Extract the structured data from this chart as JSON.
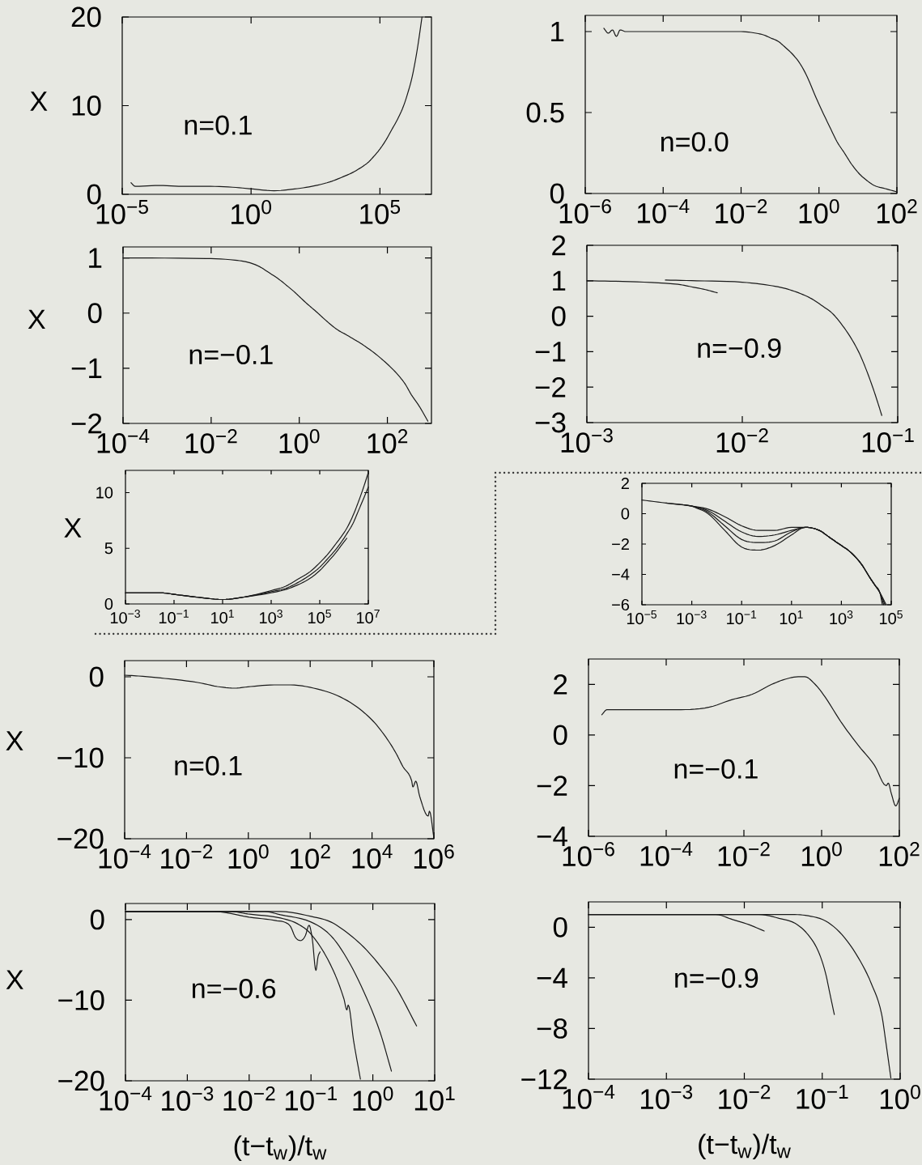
{
  "chart_data": [
    {
      "type": "line",
      "ylabel": "X",
      "annotations": [
        "n=0.1"
      ],
      "log": "x",
      "xlim": [
        1e-05,
        10000000.0
      ],
      "ylim": [
        0,
        20
      ],
      "xticks": [
        {
          "value": 1e-05,
          "label": "10$^{−5}$"
        },
        {
          "value": 1,
          "label": "10$^{0}$"
        },
        {
          "value": 100000.0,
          "label": "10$^{5}$"
        }
      ],
      "yticks": [
        0,
        10,
        20
      ],
      "series": [
        {
          "color": "#1a1a1a",
          "x": [
            2.2e-05,
            3.2e-05,
            0.00027,
            0.0022,
            0.018,
            0.19,
            1.15,
            7.8,
            49,
            230,
            1150,
            3200,
            9300,
            18000.0,
            35000.0,
            59000.0,
            100000.0,
            170000.0,
            290000.0,
            490000.0,
            810000.0,
            1200000.0,
            1800000.0,
            2800000.0,
            4300000.0
          ],
          "values": [
            1.3,
            0.9,
            1.0,
            0.9,
            0.9,
            0.8,
            0.6,
            0.4,
            0.6,
            0.9,
            1.4,
            1.9,
            2.5,
            3.0,
            3.6,
            4.3,
            5.1,
            6.1,
            7.3,
            8.5,
            9.9,
            11.4,
            13.3,
            16.3,
            20
          ]
        }
      ]
    },
    {
      "type": "line",
      "annotations": [
        "n=0.0"
      ],
      "log": "x",
      "xlim": [
        1e-06,
        100.0
      ],
      "ylim": [
        0,
        1.1
      ],
      "xticks": [
        {
          "value": 1e-06,
          "label": "10$^{−6}$"
        },
        {
          "value": 0.0001,
          "label": "10$^{−4}$"
        },
        {
          "value": 0.01,
          "label": "10$^{−2}$"
        },
        {
          "value": 1,
          "label": "10$^{0}$"
        },
        {
          "value": 100.0,
          "label": "10$^{2}$"
        }
      ],
      "yticks": [
        0,
        0.5,
        1
      ],
      "series": [
        {
          "color": "#1a1a1a",
          "x": [
            3e-06,
            3.9e-06,
            5e-06,
            6.3e-06,
            7.9e-06,
            1.1e-05,
            0.00013,
            0.01,
            0.024,
            0.037,
            0.058,
            0.089,
            0.14,
            0.21,
            0.33,
            0.5,
            0.78,
            1.2,
            1.9,
            2.9,
            4.5,
            6.9,
            11,
            17,
            26,
            50,
            100
          ],
          "values": [
            1.02,
            0.99,
            1.01,
            0.97,
            1.01,
            1.0,
            1.0,
            1.0,
            0.99,
            0.98,
            0.96,
            0.94,
            0.9,
            0.86,
            0.8,
            0.72,
            0.61,
            0.51,
            0.41,
            0.32,
            0.25,
            0.18,
            0.12,
            0.08,
            0.05,
            0.03,
            0.01
          ]
        }
      ]
    },
    {
      "type": "line",
      "ylabel": "X",
      "annotations": [
        "n=−0.1"
      ],
      "log": "x",
      "xlim": [
        0.0001,
        1000.0
      ],
      "ylim": [
        -2,
        1.2
      ],
      "xticks": [
        {
          "value": 0.0001,
          "label": "10$^{−4}$"
        },
        {
          "value": 0.01,
          "label": "10$^{−2}$"
        },
        {
          "value": 1,
          "label": "10$^{0}$"
        },
        {
          "value": 100.0,
          "label": "10$^{2}$"
        }
      ],
      "yticks": [
        {
          "value": -2,
          "label": "−2"
        },
        {
          "value": -1,
          "label": "−1"
        },
        0,
        1
      ],
      "series": [
        {
          "color": "#1a1a1a",
          "x": [
            0.0001,
            0.0076,
            0.035,
            0.07,
            0.12,
            0.2,
            0.35,
            0.52,
            0.76,
            1.1,
            1.6,
            2.4,
            3.5,
            5.2,
            7.6,
            11.5,
            17,
            25,
            35,
            52,
            76,
            115,
            170,
            250,
            350,
            540,
            830
          ],
          "values": [
            1.0,
            0.99,
            0.96,
            0.92,
            0.85,
            0.74,
            0.61,
            0.5,
            0.39,
            0.27,
            0.15,
            0.03,
            -0.09,
            -0.21,
            -0.31,
            -0.39,
            -0.47,
            -0.55,
            -0.63,
            -0.73,
            -0.84,
            -0.97,
            -1.11,
            -1.28,
            -1.48,
            -1.7,
            -1.96
          ]
        }
      ]
    },
    {
      "type": "line",
      "annotations": [
        "n=−0.9"
      ],
      "log": "x",
      "xlim": [
        0.001,
        0.1
      ],
      "ylim": [
        -3,
        2
      ],
      "xticks": [
        {
          "value": 0.001,
          "label": "10$^{−3}$"
        },
        {
          "value": 0.01,
          "label": "10$^{−2}$"
        },
        {
          "value": 0.1,
          "label": "10$^{−1}$"
        }
      ],
      "yticks": [
        {
          "value": -3,
          "label": "−3"
        },
        {
          "value": -2,
          "label": "−2"
        },
        {
          "value": -1,
          "label": "−1"
        },
        0,
        1,
        2
      ],
      "series": [
        {
          "color": "#1a1a1a",
          "x": [
            0.001,
            0.0017,
            0.0032,
            0.004,
            0.0047,
            0.0058,
            0.0069
          ],
          "values": [
            1.0,
            0.98,
            0.93,
            0.89,
            0.83,
            0.75,
            0.66
          ]
        },
        {
          "color": "#1a1a1a",
          "x": [
            0.0032,
            0.0051,
            0.01,
            0.015,
            0.019,
            0.023,
            0.028,
            0.033,
            0.038,
            0.042,
            0.049,
            0.056,
            0.062,
            0.069,
            0.074,
            0.079
          ],
          "values": [
            1.02,
            1.0,
            0.96,
            0.87,
            0.78,
            0.66,
            0.49,
            0.28,
            0.08,
            -0.14,
            -0.55,
            -1.0,
            -1.45,
            -2.0,
            -2.4,
            -2.8
          ]
        }
      ]
    },
    {
      "type": "line",
      "ylabel": "X",
      "log": "x",
      "xlim": [
        0.001,
        10000000.0
      ],
      "ylim": [
        0,
        12
      ],
      "xticks": [
        {
          "value": 0.001,
          "label": "10$^{−3}$"
        },
        {
          "value": 0.1,
          "label": "10$^{−1}$"
        },
        {
          "value": 10,
          "label": "10$^{1}$"
        },
        {
          "value": 1000.0,
          "label": "10$^{3}$"
        },
        {
          "value": 100000.0,
          "label": "10$^{5}$"
        },
        {
          "value": 10000000.0,
          "label": "10$^{7}$"
        }
      ],
      "yticks": [
        0,
        5,
        10
      ],
      "series": [
        {
          "color": "#1a1a1a",
          "x": [
            0.001,
            0.026,
            0.16,
            0.98,
            10,
            68,
            1000,
            4000,
            12000.0,
            40000.0,
            100000.0,
            220000.0,
            460000.0,
            800000.0,
            1300000.0,
            2300000.0,
            3800000.0,
            6200000.0,
            10000000.0
          ],
          "values": [
            1.0,
            1.0,
            0.8,
            0.6,
            0.4,
            0.6,
            1.2,
            1.6,
            2.2,
            2.9,
            3.7,
            4.5,
            5.4,
            6.1,
            6.8,
            7.9,
            9.1,
            10.4,
            11.8
          ]
        },
        {
          "color": "#1a1a1a",
          "x": [
            0.001,
            0.026,
            0.16,
            0.98,
            10,
            68,
            1000,
            4000,
            12000.0,
            40000.0,
            100000.0,
            220000.0,
            460000.0,
            800000.0,
            1300000.0,
            2300000.0,
            3800000.0,
            6200000.0,
            10000000.0
          ],
          "values": [
            1.0,
            1.0,
            0.8,
            0.6,
            0.4,
            0.6,
            1.1,
            1.4,
            1.9,
            2.6,
            3.3,
            4.1,
            4.9,
            5.6,
            6.3,
            7.2,
            8.3,
            9.4,
            10.5
          ]
        },
        {
          "color": "#1a1a1a",
          "x": [
            0.001,
            0.026,
            0.16,
            0.98,
            10,
            68,
            1000,
            4000,
            12000.0,
            40000.0,
            100000.0,
            220000.0,
            460000.0,
            800000.0,
            1300000.0
          ],
          "values": [
            1.0,
            1.0,
            0.8,
            0.6,
            0.4,
            0.6,
            1.0,
            1.3,
            1.7,
            2.3,
            3.0,
            3.8,
            4.6,
            5.3,
            5.9
          ]
        }
      ]
    },
    {
      "type": "line",
      "log": "x",
      "xlim": [
        1e-05,
        100000.0
      ],
      "ylim": [
        -6,
        2
      ],
      "xticks": [
        {
          "value": 1e-05,
          "label": "10$^{−5}$"
        },
        {
          "value": 0.001,
          "label": "10$^{−3}$"
        },
        {
          "value": 0.1,
          "label": "10$^{−1}$"
        },
        {
          "value": 10,
          "label": "10$^{1}$"
        },
        {
          "value": 1000.0,
          "label": "10$^{3}$"
        },
        {
          "value": 100000.0,
          "label": "10$^{5}$"
        }
      ],
      "yticks": [
        {
          "value": -6,
          "label": "−6"
        },
        {
          "value": -4,
          "label": "−4"
        },
        {
          "value": -2,
          "label": "−2"
        },
        0,
        2
      ],
      "series": [
        {
          "color": "#1a1a1a",
          "x": [
            1e-05,
            9.3e-05,
            0.001,
            0.0045,
            0.021,
            0.1,
            0.46,
            2.1,
            10,
            36,
            130,
            360,
            1000,
            2200,
            6200,
            15000.0,
            22000.0,
            35000.0,
            44000.0
          ],
          "values": [
            0.9,
            0.7,
            0.5,
            0.3,
            -0.2,
            -0.8,
            -1.1,
            -1.1,
            -0.9,
            -0.9,
            -1.1,
            -1.6,
            -2.1,
            -2.5,
            -3.3,
            -4.3,
            -4.7,
            -5.2,
            -6.0
          ]
        },
        {
          "color": "#1a1a1a",
          "x": [
            9.3e-05,
            0.001,
            0.0045,
            0.021,
            0.1,
            0.46,
            2.1,
            10,
            36,
            130,
            360,
            1000,
            2200,
            6200,
            15000.0,
            22000.0,
            35000.0,
            50000.0
          ],
          "values": [
            0.7,
            0.5,
            0.2,
            -0.5,
            -1.2,
            -1.5,
            -1.4,
            -1.1,
            -0.9,
            -1.1,
            -1.6,
            -2.1,
            -2.5,
            -3.3,
            -4.3,
            -4.7,
            -5.2,
            -6.0
          ]
        },
        {
          "color": "#1a1a1a",
          "x": [
            0.0004,
            0.001,
            0.0045,
            0.021,
            0.1,
            0.46,
            2.1,
            10,
            36,
            130,
            360,
            1000,
            2200,
            6200,
            15000.0,
            22000.0,
            35000.0,
            56000.0
          ],
          "values": [
            0.6,
            0.5,
            0.1,
            -0.8,
            -1.7,
            -1.9,
            -1.8,
            -1.2,
            -0.9,
            -1.1,
            -1.6,
            -2.1,
            -2.5,
            -3.3,
            -4.3,
            -4.7,
            -5.2,
            -6.0
          ]
        },
        {
          "color": "#1a1a1a",
          "x": [
            0.001,
            0.0045,
            0.021,
            0.1,
            0.46,
            2.1,
            10,
            36,
            130,
            360,
            1000,
            2200,
            6200,
            15000.0,
            22000.0,
            35000.0,
            63000.0
          ],
          "values": [
            0.5,
            0.0,
            -1.1,
            -2.2,
            -2.4,
            -2.1,
            -1.4,
            -0.9,
            -1.1,
            -1.6,
            -2.1,
            -2.5,
            -3.3,
            -4.3,
            -4.7,
            -5.2,
            -6.0
          ]
        }
      ]
    },
    {
      "type": "line",
      "ylabel": "X",
      "annotations": [
        "n=0.1"
      ],
      "log": "x",
      "xlim": [
        0.0001,
        1000000.0
      ],
      "ylim": [
        -20,
        2
      ],
      "xticks": [
        {
          "value": 0.0001,
          "label": "10$^{−4}$"
        },
        {
          "value": 0.01,
          "label": "10$^{−2}$"
        },
        {
          "value": 1,
          "label": "10$^{0}$"
        },
        {
          "value": 100.0,
          "label": "10$^{2}$"
        },
        {
          "value": 10000.0,
          "label": "10$^{4}$"
        },
        {
          "value": 1000000.0,
          "label": "10$^{6}$"
        }
      ],
      "yticks": [
        {
          "value": -20,
          "label": "−20"
        },
        {
          "value": -10,
          "label": "−10"
        },
        0
      ],
      "series": [
        {
          "color": "#1a1a1a",
          "x": [
            0.0001,
            0.00028,
            0.002,
            0.023,
            0.1,
            0.35,
            1.2,
            6.8,
            23,
            130,
            740,
            3200,
            11000.0,
            21000.0,
            38000.0,
            63000.0,
            100000.0,
            190000.0,
            210000.0,
            260000.0,
            350000.0,
            650000.0,
            720000.0,
            1000000.0
          ],
          "values": [
            0.2,
            0.1,
            -0.2,
            -0.7,
            -1.2,
            -1.4,
            -1.2,
            -1.0,
            -1.0,
            -1.4,
            -2.3,
            -3.7,
            -5.5,
            -6.8,
            -8.2,
            -9.6,
            -11.1,
            -12.8,
            -13.6,
            -12.9,
            -14.8,
            -17.2,
            -16.6,
            -19.9
          ]
        }
      ]
    },
    {
      "type": "line",
      "annotations": [
        "n=−0.1"
      ],
      "log": "x",
      "xlim": [
        1e-06,
        100.0
      ],
      "ylim": [
        -4,
        3
      ],
      "xticks": [
        {
          "value": 1e-06,
          "label": "10$^{−6}$"
        },
        {
          "value": 0.0001,
          "label": "10$^{−4}$"
        },
        {
          "value": 0.01,
          "label": "10$^{−2}$"
        },
        {
          "value": 1,
          "label": "10$^{0}$"
        },
        {
          "value": 100.0,
          "label": "10$^{2}$"
        }
      ],
      "yticks": [
        {
          "value": -4,
          "label": "−4"
        },
        {
          "value": -2,
          "label": "−2"
        },
        0,
        2
      ],
      "series": [
        {
          "color": "#1a1a1a",
          "x": [
            2.2e-06,
            3e-06,
            2.5e-05,
            0.00024,
            0.0013,
            0.005,
            0.016,
            0.052,
            0.115,
            0.25,
            0.37,
            0.68,
            1.23,
            3.2,
            8.7,
            23,
            46,
            52,
            62,
            81,
            100
          ],
          "values": [
            0.8,
            1.0,
            1.0,
            1.0,
            1.1,
            1.4,
            1.6,
            2.0,
            2.2,
            2.3,
            2.3,
            2.0,
            1.5,
            0.5,
            -0.4,
            -1.2,
            -2.0,
            -1.9,
            -2.3,
            -2.8,
            -2.5
          ]
        }
      ]
    },
    {
      "type": "line",
      "ylabel": "X",
      "xlabel": "(t−t$_{w}$)/t$_{w}$",
      "annotations": [
        "n=−0.6"
      ],
      "log": "x",
      "xlim": [
        0.0001,
        10
      ],
      "ylim": [
        -20,
        2
      ],
      "xticks": [
        {
          "value": 0.0001,
          "label": "10$^{−4}$"
        },
        {
          "value": 0.001,
          "label": "10$^{−3}$"
        },
        {
          "value": 0.01,
          "label": "10$^{−2}$"
        },
        {
          "value": 0.1,
          "label": "10$^{−1}$"
        },
        {
          "value": 1,
          "label": "10$^{0}$"
        },
        {
          "value": 10,
          "label": "10$^{1}$"
        }
      ],
      "yticks": [
        {
          "value": -20,
          "label": "−20"
        },
        {
          "value": -10,
          "label": "−10"
        },
        0
      ],
      "series": [
        {
          "color": "#1a1a1a",
          "x": [
            0.0001,
            0.0028,
            0.01,
            0.026,
            0.042,
            0.047,
            0.056,
            0.068,
            0.081,
            0.093,
            0.105,
            0.12,
            0.13,
            0.14
          ],
          "values": [
            1.0,
            1.0,
            0.3,
            -0.1,
            -0.5,
            -0.9,
            -2.2,
            -2.6,
            -2.0,
            -0.7,
            -2.4,
            -6.3,
            -4.6,
            -4.0
          ]
        },
        {
          "color": "#1a1a1a",
          "x": [
            0.0001,
            0.0051,
            0.0095,
            0.032,
            0.06,
            0.1,
            0.21,
            0.34,
            0.38,
            0.4,
            0.49,
            0.63
          ],
          "values": [
            1.0,
            1.0,
            0.7,
            0.2,
            -0.5,
            -1.8,
            -5.7,
            -9.8,
            -11.2,
            -10.6,
            -15.1,
            -19.8
          ]
        },
        {
          "color": "#1a1a1a",
          "x": [
            0.0001,
            0.018,
            0.032,
            0.1,
            0.21,
            0.38,
            0.71,
            1.3,
            2.0
          ],
          "values": [
            1.0,
            1.0,
            0.6,
            -0.3,
            -2.0,
            -4.8,
            -8.9,
            -13.9,
            -18.8
          ]
        },
        {
          "color": "#1a1a1a",
          "x": [
            0.0001,
            0.032,
            0.1,
            0.21,
            0.38,
            0.71,
            1.3,
            2.4,
            5.1
          ],
          "values": [
            1.0,
            1.0,
            0.4,
            -0.3,
            -1.6,
            -3.4,
            -5.7,
            -8.5,
            -13.2
          ]
        }
      ]
    },
    {
      "type": "line",
      "xlabel": "(t−t$_{w}$)/t$_{w}$",
      "annotations": [
        "n=−0.9"
      ],
      "log": "x",
      "xlim": [
        0.0001,
        1
      ],
      "ylim": [
        -12,
        2
      ],
      "xticks": [
        {
          "value": 0.0001,
          "label": "10$^{−4}$"
        },
        {
          "value": 0.001,
          "label": "10$^{−3}$"
        },
        {
          "value": 0.01,
          "label": "10$^{−2}$"
        },
        {
          "value": 0.1,
          "label": "10$^{−1}$"
        },
        {
          "value": 1,
          "label": "10$^{0}$"
        }
      ],
      "yticks": [
        {
          "value": -12,
          "label": "−12"
        },
        {
          "value": -8,
          "label": "−8"
        },
        {
          "value": -4,
          "label": "−4"
        },
        0
      ],
      "series": [
        {
          "color": "#1a1a1a",
          "x": [
            0.0001,
            0.0043,
            0.0071,
            0.0115,
            0.018
          ],
          "values": [
            1.0,
            1.0,
            0.6,
            0.2,
            -0.3
          ]
        },
        {
          "color": "#1a1a1a",
          "x": [
            0.0001,
            0.0155,
            0.028,
            0.045,
            0.066,
            0.089,
            0.11,
            0.126,
            0.143
          ],
          "values": [
            1.0,
            1.0,
            0.7,
            0.3,
            -0.6,
            -1.9,
            -3.6,
            -5.3,
            -6.9
          ]
        },
        {
          "color": "#1a1a1a",
          "x": [
            0.0001,
            0.041,
            0.066,
            0.11,
            0.18,
            0.29,
            0.43,
            0.58,
            0.66,
            0.76
          ],
          "values": [
            1.0,
            1.0,
            0.9,
            0.5,
            -0.6,
            -2.4,
            -4.5,
            -6.9,
            -9.2,
            -11.9
          ]
        }
      ]
    }
  ]
}
